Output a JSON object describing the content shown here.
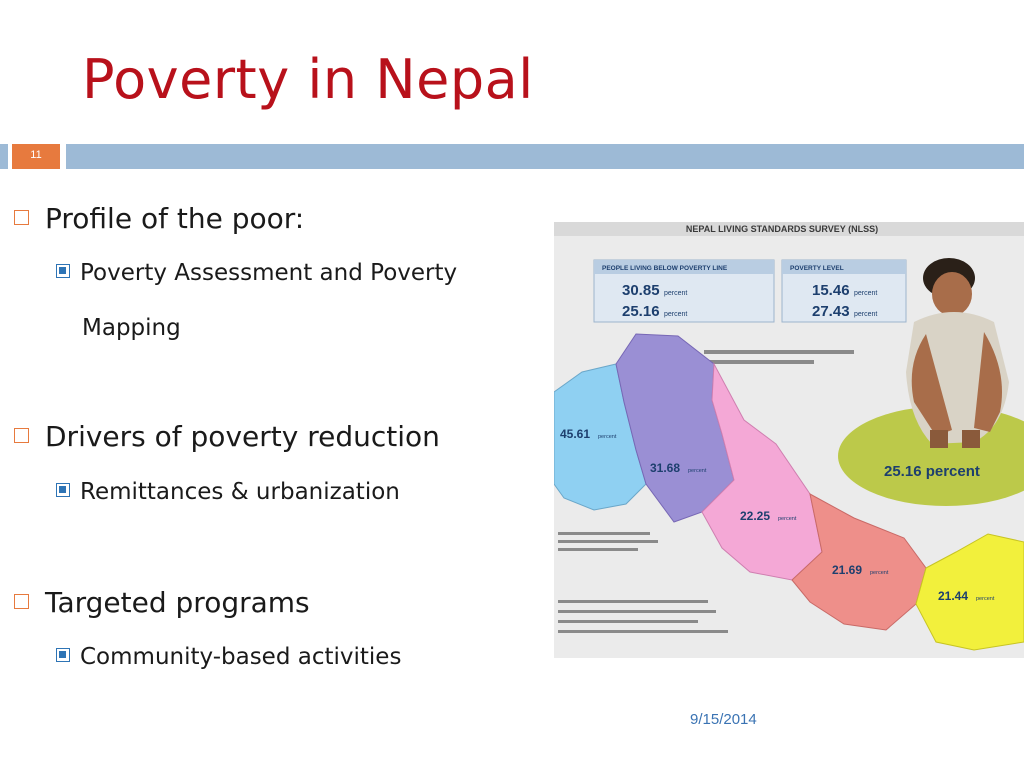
{
  "slide": {
    "title": "Poverty in Nepal",
    "number": "11",
    "date": "9/15/2014"
  },
  "bullets": [
    {
      "text": "Profile of the poor:",
      "sub": [
        "Poverty Assessment and Poverty",
        "Mapping"
      ]
    },
    {
      "text": "Drivers of poverty reduction",
      "sub": [
        "Remittances & urbanization"
      ]
    },
    {
      "text": "Targeted programs",
      "sub": [
        "Community-based activities"
      ]
    }
  ],
  "infographic": {
    "banner": "NEPAL LIVING STANDARDS SURVEY (NLSS)",
    "box1_header": "PEOPLE LIVING BELOW POVERTY LINE",
    "box1_row1_value": "30.85",
    "box1_row1_unit": "percent",
    "box1_row2_value": "25.16",
    "box1_row2_unit": "percent",
    "box2_header": "POVERTY LEVEL",
    "box2_row1_value": "15.46",
    "box2_row1_unit": "percent",
    "box2_row2_value": "27.43",
    "box2_row2_unit": "percent",
    "region_far_western": "45.61",
    "region_mid_western": "31.68",
    "region_western": "22.25",
    "region_central": "21.69",
    "region_eastern": "21.44",
    "region_unit": "percent",
    "national": "25.16 percent",
    "colors": {
      "far_western": "#8fd0f2",
      "mid_western": "#9a8fd4",
      "western": "#f4a8d6",
      "central": "#ee8f8a",
      "eastern": "#f2f03c",
      "ellipse": "#bcc94a"
    }
  }
}
